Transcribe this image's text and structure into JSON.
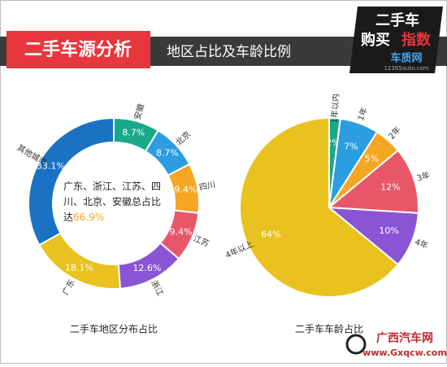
{
  "header": {
    "title": "二手车源分析",
    "subtitle": "地区占比及车龄比例",
    "logo_top": "二手车",
    "logo_mid": "购买",
    "logo_hot": "指数",
    "logo_site": "车质网",
    "logo_url": "12365auto.com"
  },
  "watermark": {
    "name": "广西汽车网",
    "url": "www.Gxqcw.com"
  },
  "chart_data": [
    {
      "type": "donut",
      "title": "二手车地区分布占比",
      "categories": [
        "安徽",
        "北京",
        "四川",
        "江苏",
        "浙江",
        "广东",
        "其他城市"
      ],
      "values": [
        8.7,
        8.7,
        9.4,
        9.4,
        12.6,
        18.1,
        33.1
      ],
      "value_labels": [
        "8.7%",
        "8.7%",
        "9.4%",
        "9.4%",
        "12.6%",
        "18.1%",
        "33.1%"
      ],
      "colors": [
        "#1aa88a",
        "#2b9de0",
        "#f5a623",
        "#e8566a",
        "#8a55d4",
        "#e9c21f",
        "#1b72c2"
      ],
      "annotation": "广东、浙江、江苏、四川、北京、安徽总占比达",
      "annotation_highlight": "66.9%"
    },
    {
      "type": "pie",
      "title": "二手车车龄占比",
      "categories": [
        "1年以内",
        "1年",
        "2年",
        "3年",
        "4年",
        "4年以上"
      ],
      "values": [
        2,
        7,
        5,
        12,
        10,
        64
      ],
      "value_labels": [
        "2%",
        "7%",
        "5%",
        "12%",
        "10%",
        "64%"
      ],
      "colors": [
        "#1aa88a",
        "#2b9de0",
        "#f5a623",
        "#e8566a",
        "#8a55d4",
        "#e9c21f"
      ]
    }
  ]
}
